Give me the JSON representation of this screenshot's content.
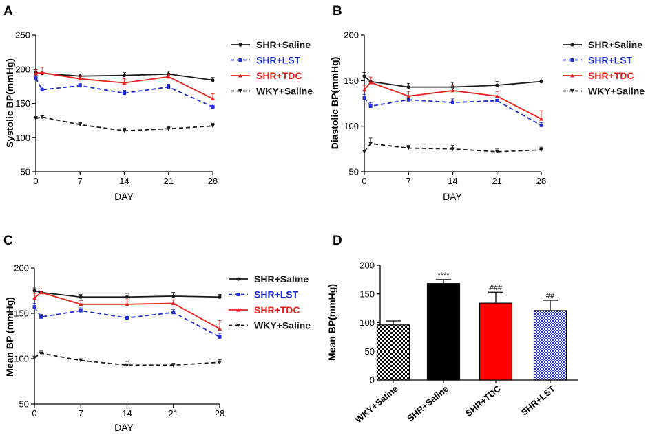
{
  "colors": {
    "SHR+Saline": "#1a1a1a",
    "SHR+LST": "#1f2bd6",
    "SHR+TDC": "#e8211d",
    "WKY+Saline": "#1a1a1a"
  },
  "chart_data": [
    {
      "panel": "A",
      "type": "line",
      "title": "",
      "xlabel": "DAY",
      "ylabel": "Systolic BP(mmHg)",
      "x": [
        0,
        1,
        7,
        14,
        21,
        28
      ],
      "xticks": [
        0,
        7,
        14,
        21,
        28
      ],
      "yticks": [
        50,
        100,
        150,
        200,
        250
      ],
      "xlim": [
        0,
        28
      ],
      "ylim": [
        50,
        250
      ],
      "legend": [
        "SHR+Saline",
        "SHR+LST",
        "SHR+TDC",
        "WKY+Saline"
      ],
      "series": [
        {
          "name": "SHR+Saline",
          "values": [
            195,
            194,
            190,
            191,
            193,
            184
          ],
          "errors": [
            4,
            3,
            3,
            4,
            4,
            4
          ]
        },
        {
          "name": "SHR+LST",
          "values": [
            187,
            170,
            176,
            165,
            174,
            145
          ],
          "errors": [
            4,
            4,
            3,
            4,
            4,
            4
          ]
        },
        {
          "name": "SHR+TDC",
          "values": [
            194,
            195,
            186,
            180,
            189,
            157
          ],
          "errors": [
            6,
            8,
            4,
            6,
            4,
            7
          ]
        },
        {
          "name": "WKY+Saline",
          "values": [
            128,
            130,
            119,
            110,
            113,
            117
          ],
          "errors": [
            3,
            3,
            3,
            4,
            3,
            4
          ]
        }
      ]
    },
    {
      "panel": "B",
      "type": "line",
      "title": "",
      "xlabel": "DAY",
      "ylabel": "Diastolic BP(mmHg)",
      "x": [
        0,
        1,
        7,
        14,
        21,
        28
      ],
      "xticks": [
        0,
        7,
        14,
        21,
        28
      ],
      "yticks": [
        50,
        100,
        150,
        200
      ],
      "xlim": [
        0,
        28
      ],
      "ylim": [
        50,
        200
      ],
      "legend": [
        "SHR+Saline",
        "SHR+LST",
        "SHR+TDC",
        "WKY+Saline"
      ],
      "series": [
        {
          "name": "SHR+Saline",
          "values": [
            155,
            149,
            143,
            143,
            145,
            149
          ],
          "errors": [
            4,
            4,
            4,
            5,
            4,
            4
          ]
        },
        {
          "name": "SHR+LST",
          "values": [
            131,
            122,
            129,
            126,
            128,
            101
          ],
          "errors": [
            4,
            4,
            4,
            4,
            3,
            3
          ]
        },
        {
          "name": "SHR+TDC",
          "values": [
            140,
            148,
            133,
            139,
            133,
            108
          ],
          "errors": [
            5,
            6,
            5,
            6,
            5,
            9
          ]
        },
        {
          "name": "WKY+Saline",
          "values": [
            72,
            81,
            76,
            75,
            72,
            74
          ],
          "errors": [
            4,
            6,
            3,
            4,
            3,
            3
          ]
        }
      ]
    },
    {
      "panel": "C",
      "type": "line",
      "title": "",
      "xlabel": "DAY",
      "ylabel": "Mean BP (mmHg)",
      "x": [
        0,
        1,
        7,
        14,
        21,
        28
      ],
      "xticks": [
        0,
        7,
        14,
        21,
        28
      ],
      "yticks": [
        50,
        100,
        150,
        200
      ],
      "xlim": [
        0,
        28
      ],
      "ylim": [
        50,
        200
      ],
      "legend": [
        "SHR+Saline",
        "SHR+LST",
        "SHR+TDC",
        "WKY+Saline"
      ],
      "series": [
        {
          "name": "SHR+Saline",
          "values": [
            175,
            173,
            168,
            168,
            169,
            168
          ],
          "errors": [
            3,
            4,
            3,
            4,
            4,
            3
          ]
        },
        {
          "name": "SHR+LST",
          "values": [
            157,
            146,
            153,
            145,
            151,
            124
          ],
          "errors": [
            4,
            3,
            3,
            3,
            3,
            4
          ]
        },
        {
          "name": "SHR+TDC",
          "values": [
            167,
            173,
            160,
            160,
            161,
            133
          ],
          "errors": [
            5,
            6,
            4,
            5,
            4,
            9
          ]
        },
        {
          "name": "WKY+Saline",
          "values": [
            101,
            106,
            98,
            93,
            93,
            96
          ],
          "errors": [
            3,
            3,
            2,
            4,
            2,
            3
          ]
        }
      ]
    },
    {
      "panel": "D",
      "type": "bar",
      "title": "",
      "xlabel": "",
      "ylabel": "Mean BP(mmHg)",
      "categories": [
        "WKY+Saline",
        "SHR+Saline",
        "SHR+TDC",
        "SHR+LST"
      ],
      "values": [
        96,
        168,
        134,
        121
      ],
      "errors": [
        7,
        7,
        19,
        18
      ],
      "annotations": [
        "",
        "****",
        "###",
        "##"
      ],
      "fills": [
        "checker",
        "#000000",
        "#ff0000",
        "blue-hatch"
      ],
      "yticks": [
        0,
        50,
        100,
        150,
        200
      ],
      "ylim": [
        0,
        200
      ]
    }
  ]
}
